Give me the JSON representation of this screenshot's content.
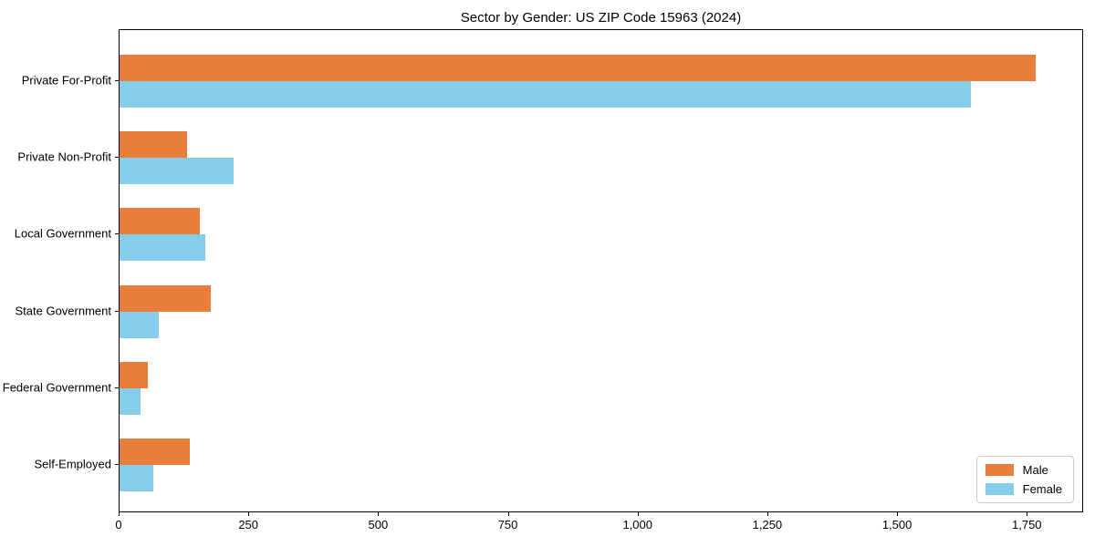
{
  "chart_data": {
    "type": "bar",
    "orientation": "horizontal",
    "title": "Sector by Gender: US ZIP Code 15963 (2024)",
    "categories": [
      "Private For-Profit",
      "Private Non-Profit",
      "Local Government",
      "State Government",
      "Federal Government",
      "Self-Employed"
    ],
    "series": [
      {
        "name": "Male",
        "color": "#e87d3c",
        "values": [
          1765,
          130,
          155,
          175,
          55,
          135
        ]
      },
      {
        "name": "Female",
        "color": "#85cde8",
        "values": [
          1640,
          220,
          165,
          75,
          40,
          65
        ]
      }
    ],
    "xlabel": "",
    "ylabel": "",
    "xlim": [
      0,
      1855
    ],
    "xticks": [
      0,
      250,
      500,
      750,
      1000,
      1250,
      1500,
      1750
    ],
    "xtick_labels": [
      "0",
      "250",
      "500",
      "750",
      "1,000",
      "1,250",
      "1,500",
      "1,750"
    ],
    "grid": false,
    "legend": {
      "position": "lower right"
    }
  }
}
